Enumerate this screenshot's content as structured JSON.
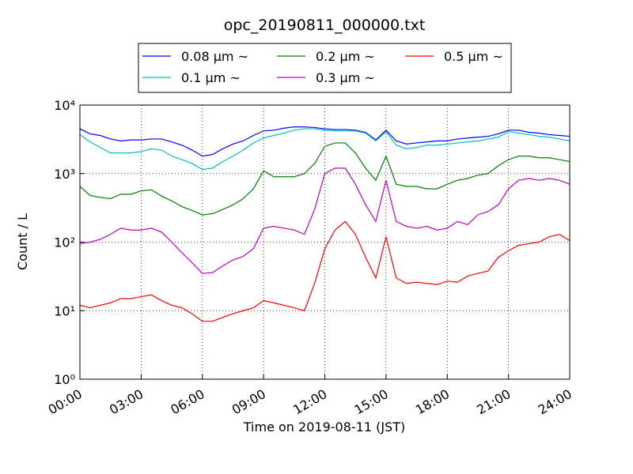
{
  "chart_data": {
    "type": "line",
    "title": "opc_20190811_000000.txt",
    "xlabel": "Time on 2019-08-11 (JST)",
    "ylabel": "Count / L",
    "yscale": "log",
    "grid": true,
    "legend": "upper center",
    "xlim": [
      0,
      24
    ],
    "xticks": [
      {
        "value": 0,
        "label": "00:00"
      },
      {
        "value": 3,
        "label": "03:00"
      },
      {
        "value": 6,
        "label": "06:00"
      },
      {
        "value": 9,
        "label": "09:00"
      },
      {
        "value": 12,
        "label": "12:00"
      },
      {
        "value": 15,
        "label": "15:00"
      },
      {
        "value": 18,
        "label": "18:00"
      },
      {
        "value": 21,
        "label": "21:00"
      },
      {
        "value": 24,
        "label": "24:00"
      }
    ],
    "ylim": [
      1,
      10000
    ],
    "yticks": [
      {
        "value": 1,
        "label": "10⁰"
      },
      {
        "value": 10,
        "label": "10¹"
      },
      {
        "value": 100,
        "label": "10²"
      },
      {
        "value": 1000,
        "label": "10³"
      },
      {
        "value": 10000,
        "label": "10⁴"
      }
    ],
    "x": [
      0,
      0.5,
      1,
      1.5,
      2,
      2.5,
      3,
      3.5,
      4,
      4.5,
      5,
      5.5,
      6,
      6.5,
      7,
      7.5,
      8,
      8.5,
      9,
      9.5,
      10,
      10.5,
      11,
      11.5,
      12,
      12.5,
      13,
      13.5,
      14,
      14.5,
      15,
      15.5,
      16,
      16.5,
      17,
      17.5,
      18,
      18.5,
      19,
      19.5,
      20,
      20.5,
      21,
      21.5,
      22,
      22.5,
      23,
      23.5,
      24
    ],
    "series": [
      {
        "name": "0.08 μm ~",
        "color": "#0000ff",
        "values": [
          4500,
          3800,
          3600,
          3200,
          3000,
          3100,
          3100,
          3200,
          3200,
          2900,
          2600,
          2200,
          1800,
          1900,
          2300,
          2700,
          3000,
          3600,
          4200,
          4300,
          4600,
          4800,
          4800,
          4700,
          4500,
          4400,
          4400,
          4300,
          4000,
          3100,
          4300,
          3000,
          2700,
          2800,
          2900,
          3000,
          3000,
          3200,
          3300,
          3400,
          3500,
          3800,
          4300,
          4300,
          4000,
          3900,
          3700,
          3600,
          3500
        ]
      },
      {
        "name": "0.1 μm ~",
        "color": "#00bfbf",
        "values": [
          3700,
          2900,
          2400,
          2000,
          2000,
          2000,
          2100,
          2300,
          2200,
          1800,
          1600,
          1400,
          1150,
          1200,
          1500,
          1800,
          2200,
          2800,
          3300,
          3600,
          3900,
          4300,
          4500,
          4500,
          4300,
          4200,
          4200,
          4200,
          3900,
          3000,
          4100,
          2600,
          2300,
          2400,
          2600,
          2600,
          2700,
          2800,
          2900,
          3000,
          3200,
          3400,
          4100,
          3900,
          3700,
          3500,
          3400,
          3200,
          3000
        ]
      },
      {
        "name": "0.2 μm ~",
        "color": "#008000",
        "values": [
          650,
          480,
          450,
          430,
          500,
          500,
          560,
          580,
          470,
          400,
          330,
          290,
          250,
          260,
          300,
          350,
          430,
          600,
          1100,
          900,
          900,
          900,
          1000,
          1400,
          2500,
          2800,
          2800,
          2000,
          1200,
          800,
          1800,
          700,
          650,
          650,
          600,
          600,
          700,
          800,
          850,
          950,
          1000,
          1300,
          1600,
          1800,
          1800,
          1700,
          1700,
          1600,
          1500
        ]
      },
      {
        "name": "0.3 μm ~",
        "color": "#bf00bf",
        "values": [
          95,
          100,
          110,
          130,
          160,
          150,
          150,
          160,
          140,
          100,
          70,
          50,
          35,
          36,
          45,
          55,
          62,
          80,
          160,
          170,
          160,
          150,
          130,
          300,
          1000,
          1200,
          1200,
          700,
          350,
          200,
          800,
          200,
          170,
          160,
          170,
          150,
          160,
          200,
          180,
          250,
          280,
          350,
          600,
          800,
          850,
          800,
          850,
          800,
          700
        ]
      },
      {
        "name": "0.5 μm ~",
        "color": "#ff0000",
        "values": [
          12,
          11,
          12,
          13,
          15,
          15,
          16,
          17,
          14,
          12,
          11,
          9,
          7,
          7,
          8,
          9,
          10,
          11,
          14,
          13,
          12,
          11,
          10,
          25,
          80,
          150,
          200,
          130,
          60,
          30,
          120,
          30,
          25,
          26,
          25,
          24,
          27,
          26,
          32,
          35,
          38,
          60,
          75,
          90,
          95,
          100,
          120,
          130,
          105
        ]
      }
    ]
  }
}
